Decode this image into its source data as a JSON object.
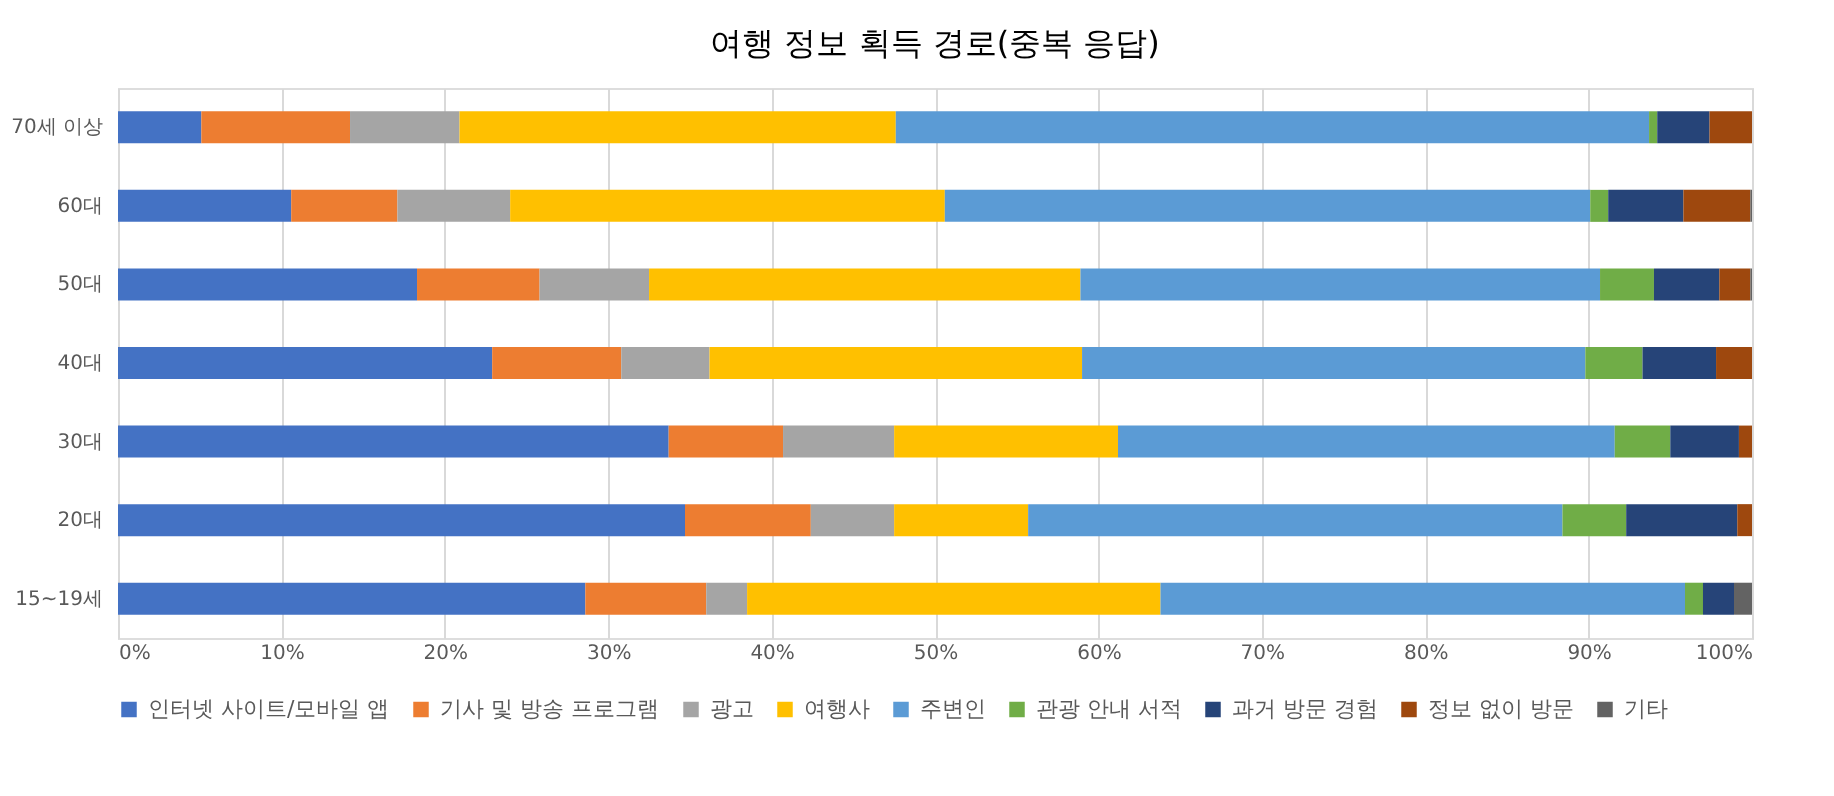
{
  "chart_data": {
    "type": "bar",
    "orientation": "horizontal",
    "stacked": true,
    "title": "여행 정보 획득 경로(중복 응답)",
    "categories": [
      "70세 이상",
      "60대",
      "50대",
      "40대",
      "30대",
      "20대",
      "15~19세"
    ],
    "series": [
      {
        "name": "인터넷 사이트/모바일 앱",
        "color": "#4472c4",
        "values": [
          5.1,
          10.6,
          18.3,
          22.9,
          33.7,
          34.7,
          28.6
        ]
      },
      {
        "name": "기사 및 방송 프로그램",
        "color": "#ed7d31",
        "values": [
          9.1,
          6.5,
          7.5,
          7.9,
          7.0,
          7.7,
          7.4
        ]
      },
      {
        "name": "광고",
        "color": "#a5a5a5",
        "values": [
          6.7,
          6.9,
          6.7,
          5.4,
          6.8,
          5.1,
          2.5
        ]
      },
      {
        "name": "여행사",
        "color": "#ffc000",
        "values": [
          26.7,
          26.6,
          26.4,
          22.8,
          13.7,
          8.2,
          25.3
        ]
      },
      {
        "name": "주변인",
        "color": "#5b9bd5",
        "values": [
          46.1,
          39.5,
          31.8,
          30.8,
          30.4,
          32.7,
          32.1
        ]
      },
      {
        "name": "관광 안내 서적",
        "color": "#70ad47",
        "values": [
          0.5,
          1.1,
          3.3,
          3.5,
          3.4,
          3.9,
          1.1
        ]
      },
      {
        "name": "과거 방문 경험",
        "color": "#264478",
        "values": [
          3.2,
          4.6,
          4.0,
          4.5,
          4.2,
          6.8,
          1.9
        ]
      },
      {
        "name": "정보 없이 방문",
        "color": "#9e480e",
        "values": [
          2.6,
          4.1,
          1.9,
          2.2,
          0.8,
          0.9,
          0
        ]
      },
      {
        "name": "기타",
        "color": "#636363",
        "values": [
          0,
          0.1,
          0.1,
          0,
          0,
          0,
          1.1
        ]
      }
    ],
    "xlim": [
      0,
      100
    ],
    "xticks": [
      {
        "value": 0,
        "label": "0%"
      },
      {
        "value": 10,
        "label": "10%"
      },
      {
        "value": 20,
        "label": "20%"
      },
      {
        "value": 30,
        "label": "30%"
      },
      {
        "value": 40,
        "label": "40%"
      },
      {
        "value": 50,
        "label": "50%"
      },
      {
        "value": 60,
        "label": "60%"
      },
      {
        "value": 70,
        "label": "70%"
      },
      {
        "value": 80,
        "label": "80%"
      },
      {
        "value": 90,
        "label": "90%"
      },
      {
        "value": 100,
        "label": "100%"
      }
    ],
    "grid": "x",
    "legend": "bottom"
  }
}
